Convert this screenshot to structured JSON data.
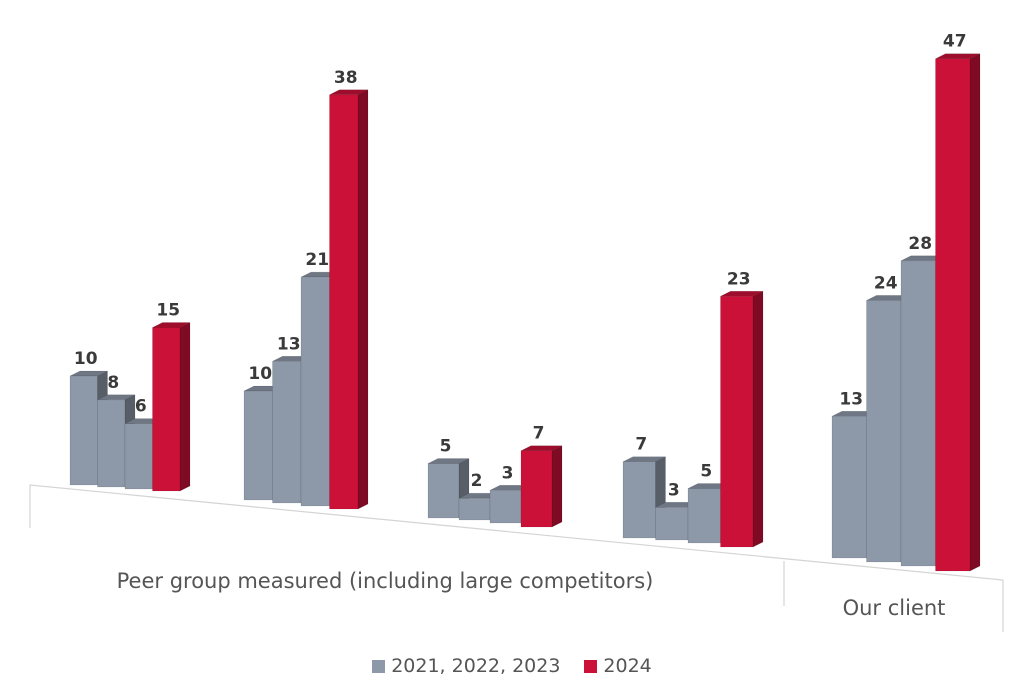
{
  "chart_data": {
    "type": "bar",
    "categories": [
      "Peer group measured (including large competitors)",
      "Our client"
    ],
    "groups": [
      {
        "category": 0,
        "values": [
          10,
          8,
          6,
          15
        ]
      },
      {
        "category": 0,
        "values": [
          10,
          13,
          21,
          38
        ]
      },
      {
        "category": 0,
        "values": [
          5,
          2,
          3,
          7
        ]
      },
      {
        "category": 0,
        "values": [
          7,
          3,
          5,
          23
        ]
      },
      {
        "category": 1,
        "values": [
          13,
          24,
          28,
          47
        ]
      }
    ],
    "series": [
      {
        "name": "2021, 2022, 2023",
        "color": "#8d98a8"
      },
      {
        "name": "2024",
        "color": "#cc1138"
      }
    ],
    "ylim": [
      0,
      50
    ],
    "grid": false,
    "legend_position": "bottom",
    "three_d": true
  },
  "legend": {
    "items": [
      {
        "label": "2021, 2022, 2023",
        "color": "#8d98a8"
      },
      {
        "label": "2024",
        "color": "#cc1138"
      }
    ]
  }
}
